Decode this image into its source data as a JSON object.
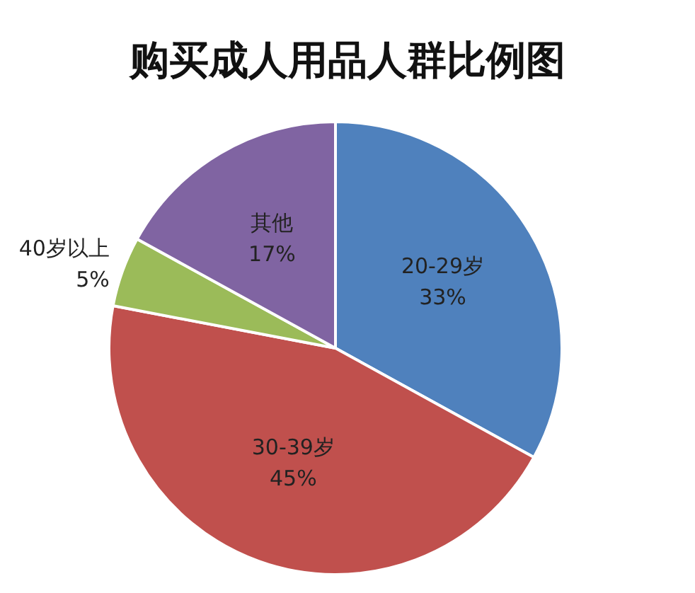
{
  "chart_data": {
    "type": "pie",
    "title": "购买成人用品人群比例图",
    "categories": [
      "20-29岁",
      "30-39岁",
      "40岁以上",
      "其他"
    ],
    "values": [
      33,
      45,
      5,
      17
    ],
    "value_labels": [
      "33%",
      "45%",
      "5%",
      "17%"
    ],
    "colors": [
      "#4f81bd",
      "#c0504d",
      "#9bbb59",
      "#8064a2"
    ]
  }
}
